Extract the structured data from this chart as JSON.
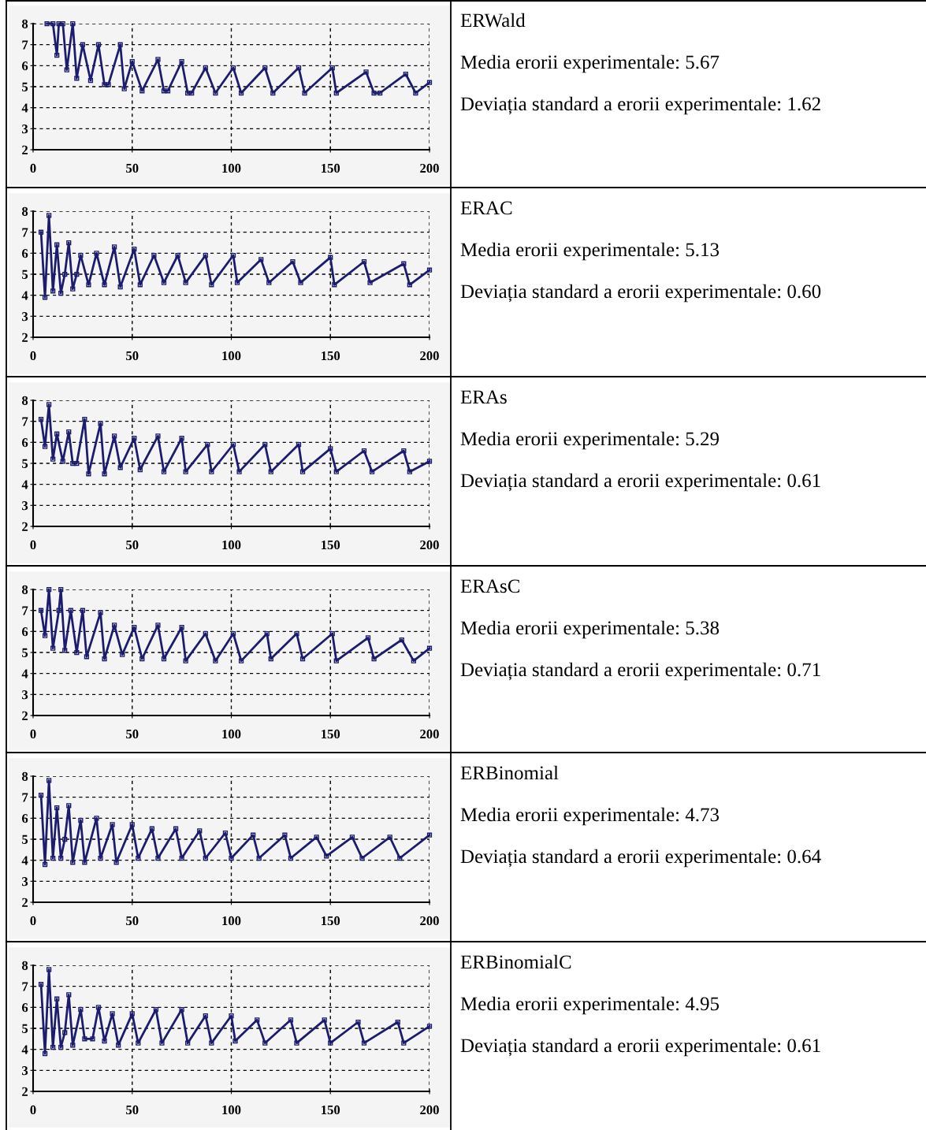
{
  "chart_data": [
    {
      "type": "line",
      "color": "#1c1c6e",
      "marker": "square",
      "line_style": "solid",
      "grid": true,
      "xlim": [
        0,
        200
      ],
      "xticks": [
        0,
        50,
        100,
        150,
        200
      ],
      "ylim": [
        2,
        8
      ],
      "yticks": [
        2,
        3,
        4,
        5,
        6,
        7,
        8
      ],
      "x": [
        7,
        10,
        12,
        13,
        15,
        17,
        20,
        22,
        25,
        29,
        33,
        36,
        38,
        44,
        46,
        50,
        55,
        63,
        66,
        68,
        75,
        78,
        80,
        87,
        92,
        101,
        105,
        117,
        121,
        134,
        137,
        151,
        153,
        168,
        172,
        175,
        188,
        193,
        200
      ],
      "values": [
        8,
        8,
        6.5,
        8,
        8,
        5.8,
        8,
        5.4,
        7,
        5.3,
        7,
        5.1,
        5.1,
        7,
        4.9,
        6.2,
        4.8,
        6.3,
        4.8,
        4.8,
        6.2,
        4.7,
        4.7,
        5.9,
        4.7,
        5.9,
        4.7,
        5.9,
        4.7,
        5.9,
        4.7,
        5.9,
        4.7,
        5.7,
        4.7,
        4.7,
        5.6,
        4.7,
        5.2
      ]
    },
    {
      "type": "other",
      "title": "ERWald",
      "annotations": [
        "Media erorii experimentale: 5.67",
        "Deviația standard a erorii experimentale: 1.62"
      ]
    },
    {
      "type": "line",
      "color": "#1c1c6e",
      "marker": "square",
      "line_style": "solid",
      "grid": true,
      "xlim": [
        0,
        200
      ],
      "xticks": [
        0,
        50,
        100,
        150,
        200
      ],
      "ylim": [
        2,
        8
      ],
      "yticks": [
        2,
        3,
        4,
        5,
        6,
        7,
        8
      ],
      "x": [
        4,
        6,
        8,
        10,
        12,
        14,
        16,
        18,
        20,
        22,
        24,
        28,
        32,
        36,
        41,
        44,
        51,
        54,
        61,
        66,
        73,
        77,
        87,
        90,
        101,
        103,
        115,
        119,
        131,
        135,
        150,
        152,
        167,
        170,
        187,
        190,
        200
      ],
      "values": [
        7,
        3.9,
        7.8,
        4.2,
        6.4,
        4.1,
        5,
        6.5,
        4.3,
        5,
        5.9,
        4.5,
        6,
        4.5,
        6.3,
        4.4,
        6.2,
        4.5,
        5.9,
        4.6,
        5.9,
        4.6,
        5.9,
        4.5,
        5.9,
        4.6,
        5.7,
        4.6,
        5.6,
        4.6,
        5.8,
        4.5,
        5.6,
        4.6,
        5.5,
        4.5,
        5.2
      ]
    },
    {
      "type": "other",
      "title": "ERAC",
      "annotations": [
        "Media erorii experimentale: 5.13",
        "Deviația standard a erorii experimentale: 0.60"
      ]
    },
    {
      "type": "line",
      "color": "#1c1c6e",
      "marker": "square",
      "line_style": "solid",
      "grid": true,
      "xlim": [
        0,
        200
      ],
      "xticks": [
        0,
        50,
        100,
        150,
        200
      ],
      "ylim": [
        2,
        8
      ],
      "yticks": [
        2,
        3,
        4,
        5,
        6,
        7,
        8
      ],
      "x": [
        4,
        6,
        8,
        10,
        12,
        15,
        18,
        20,
        22,
        26,
        28,
        34,
        36,
        41,
        44,
        51,
        54,
        63,
        66,
        75,
        77,
        88,
        90,
        101,
        104,
        117,
        120,
        134,
        136,
        150,
        153,
        167,
        171,
        187,
        190,
        200
      ],
      "values": [
        7.1,
        5.8,
        7.8,
        5.2,
        6.4,
        5.1,
        6.5,
        5,
        5,
        7.1,
        4.5,
        6.9,
        4.5,
        6.3,
        4.8,
        6.2,
        4.7,
        6.3,
        4.6,
        6.2,
        4.6,
        5.9,
        4.6,
        5.9,
        4.6,
        5.9,
        4.6,
        5.9,
        4.6,
        5.7,
        4.6,
        5.6,
        4.6,
        5.6,
        4.6,
        5.1
      ]
    },
    {
      "type": "other",
      "title": "ERAs",
      "annotations": [
        "Media erorii experimentale: 5.29",
        "Deviația standard a erorii experimentale: 0.61"
      ]
    },
    {
      "type": "line",
      "color": "#1c1c6e",
      "marker": "square",
      "line_style": "solid",
      "grid": true,
      "xlim": [
        0,
        200
      ],
      "xticks": [
        0,
        50,
        100,
        150,
        200
      ],
      "ylim": [
        2,
        8
      ],
      "yticks": [
        2,
        3,
        4,
        5,
        6,
        7,
        8
      ],
      "x": [
        4,
        6,
        8,
        10,
        13,
        14,
        16,
        19,
        22,
        25,
        27,
        34,
        36,
        41,
        45,
        51,
        55,
        63,
        66,
        75,
        77,
        87,
        92,
        101,
        105,
        118,
        120,
        133,
        136,
        151,
        153,
        169,
        172,
        186,
        192,
        200
      ],
      "values": [
        7,
        5.8,
        8,
        5.2,
        7,
        8,
        5.1,
        7,
        5,
        7,
        4.8,
        6.9,
        4.7,
        6.3,
        4.9,
        6.2,
        4.7,
        6.3,
        4.7,
        6.2,
        4.6,
        5.9,
        4.6,
        5.9,
        4.6,
        5.9,
        4.7,
        5.9,
        4.7,
        5.9,
        4.6,
        5.7,
        4.7,
        5.6,
        4.6,
        5.2
      ]
    },
    {
      "type": "other",
      "title": "ERAsC",
      "annotations": [
        "Media erorii experimentale: 5.38",
        "Deviația standard a erorii experimentale: 0.71"
      ]
    },
    {
      "type": "line",
      "color": "#1c1c6e",
      "marker": "square",
      "line_style": "solid",
      "grid": true,
      "xlim": [
        0,
        200
      ],
      "xticks": [
        0,
        50,
        100,
        150,
        200
      ],
      "ylim": [
        2,
        8
      ],
      "yticks": [
        2,
        3,
        4,
        5,
        6,
        7,
        8
      ],
      "x": [
        4,
        6,
        8,
        10,
        12,
        14,
        16,
        18,
        20,
        24,
        26,
        32,
        34,
        40,
        42,
        50,
        53,
        60,
        63,
        72,
        75,
        84,
        87,
        97,
        100,
        111,
        114,
        127,
        130,
        143,
        148,
        161,
        166,
        180,
        185,
        200
      ],
      "values": [
        7.1,
        3.8,
        7.8,
        4.1,
        6.5,
        4.1,
        5,
        6.6,
        3.9,
        5.9,
        3.9,
        6,
        4.1,
        5.7,
        3.9,
        5.7,
        4.1,
        5.5,
        4.1,
        5.5,
        4.1,
        5.4,
        4.1,
        5.3,
        4.1,
        5.2,
        4.1,
        5.2,
        4.1,
        5.1,
        4.2,
        5.1,
        4.1,
        5.1,
        4.1,
        5.2
      ]
    },
    {
      "type": "other",
      "title": "ERBinomial",
      "annotations": [
        "Media erorii experimentale: 4.73",
        "Deviația standard a erorii experimentale: 0.64"
      ]
    },
    {
      "type": "line",
      "color": "#1c1c6e",
      "marker": "square",
      "line_style": "solid",
      "grid": true,
      "xlim": [
        0,
        200
      ],
      "xticks": [
        0,
        50,
        100,
        150,
        200
      ],
      "ylim": [
        2,
        8
      ],
      "yticks": [
        2,
        3,
        4,
        5,
        6,
        7,
        8
      ],
      "x": [
        4,
        6,
        8,
        10,
        12,
        14,
        16,
        18,
        20,
        24,
        26,
        30,
        33,
        36,
        40,
        43,
        50,
        53,
        62,
        65,
        75,
        78,
        87,
        90,
        100,
        102,
        113,
        117,
        130,
        133,
        147,
        150,
        164,
        167,
        184,
        187,
        200
      ],
      "values": [
        7.1,
        3.8,
        7.8,
        4.1,
        6.4,
        4.1,
        4.8,
        6.6,
        4.2,
        5.9,
        4.5,
        4.5,
        6,
        4.4,
        5.7,
        4.2,
        5.7,
        4.3,
        5.9,
        4.3,
        5.9,
        4.3,
        5.6,
        4.3,
        5.6,
        4.4,
        5.4,
        4.3,
        5.4,
        4.3,
        5.4,
        4.3,
        5.3,
        4.3,
        5.3,
        4.3,
        5.1
      ]
    },
    {
      "type": "other",
      "title": "ERBinomialC",
      "annotations": [
        "Media erorii experimentale: 4.95",
        "Deviația standard a erorii experimentale: 0.61"
      ]
    }
  ]
}
